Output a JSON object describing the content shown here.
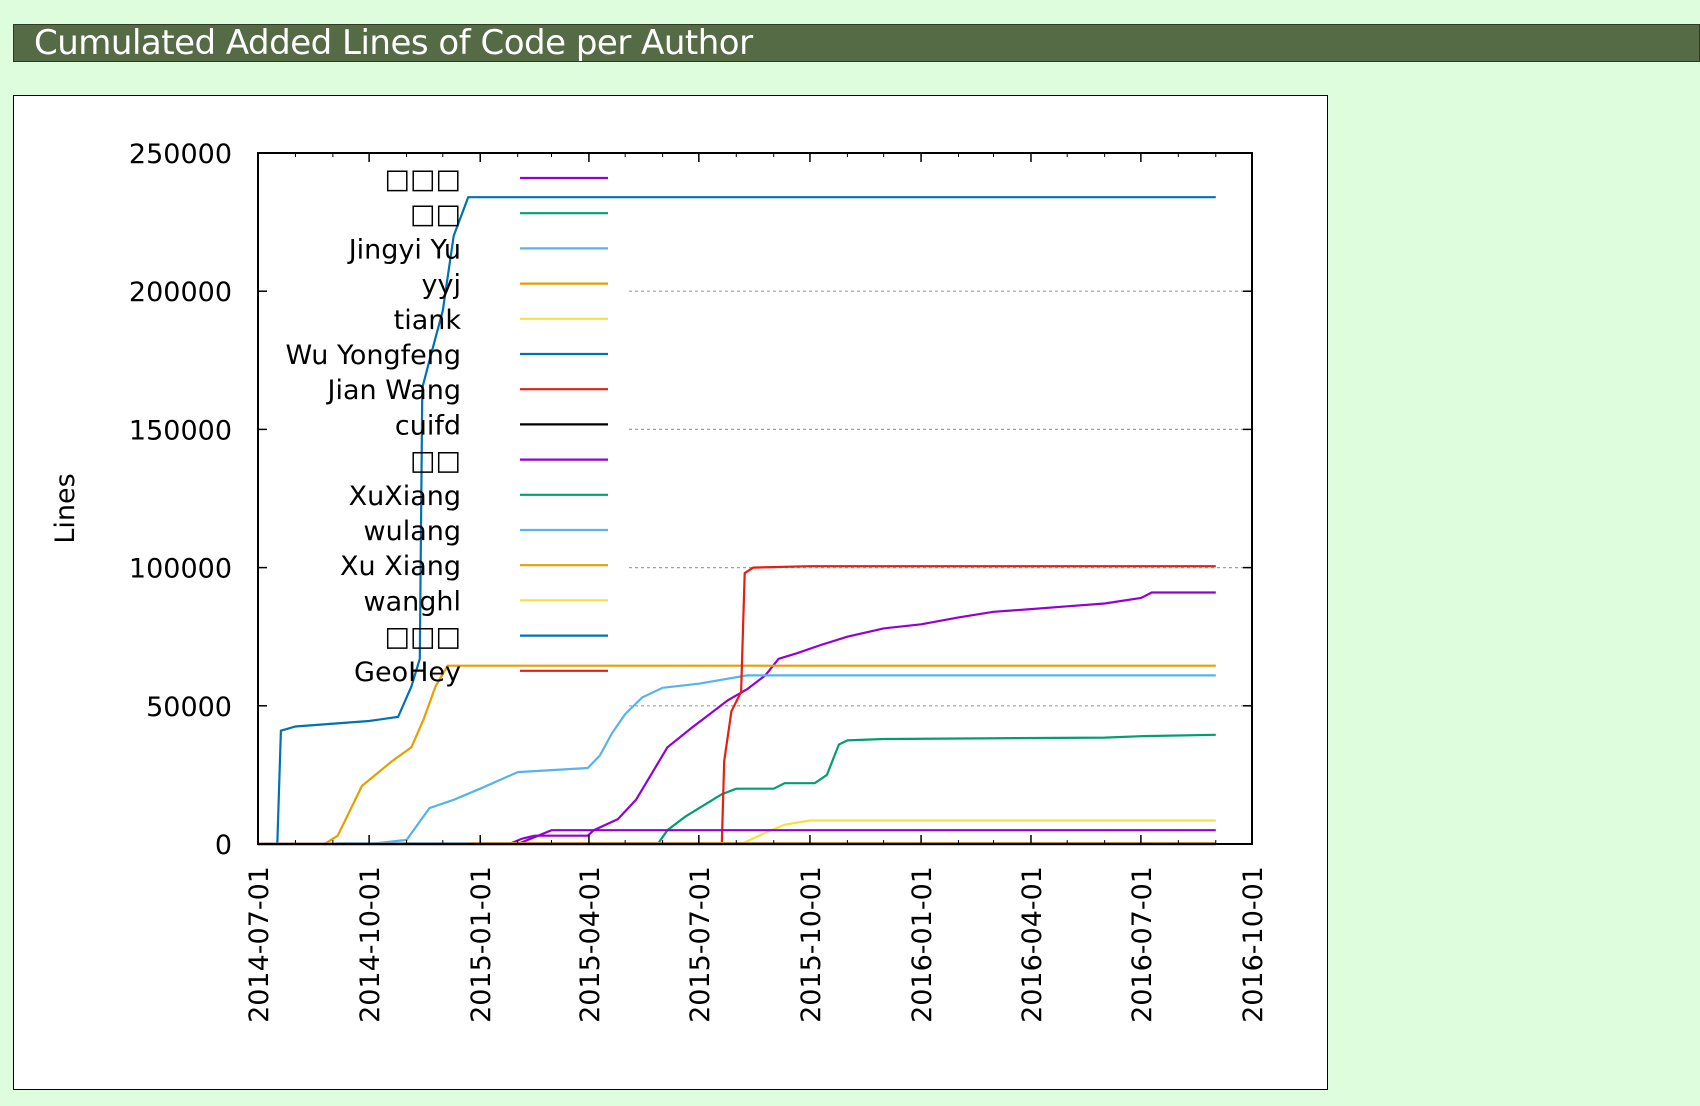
{
  "header": {
    "title": "Cumulated Added Lines of Code per Author"
  },
  "chart_data": {
    "type": "line",
    "title": "",
    "xlabel": "",
    "ylabel": "Lines",
    "xlim": [
      "2014-07-01",
      "2016-10-01"
    ],
    "ylim": [
      0,
      250000
    ],
    "y_ticks": [
      0,
      50000,
      100000,
      150000,
      200000,
      250000
    ],
    "y_tick_labels": [
      "0",
      "50000",
      "100000",
      "150000",
      "200000",
      "250000"
    ],
    "x_ticks": [
      "2014-07-01",
      "2014-10-01",
      "2015-01-01",
      "2015-04-01",
      "2015-07-01",
      "2015-10-01",
      "2016-01-01",
      "2016-04-01",
      "2016-07-01",
      "2016-10-01"
    ],
    "grid": "dotted horizontal lines at y ticks, right of legend",
    "legend": "inside top-left",
    "series": [
      {
        "name": "□□□",
        "color": "#9400d3",
        "points": [
          [
            "2014-07-01",
            0
          ],
          [
            "2015-01-25",
            0
          ],
          [
            "2015-02-05",
            2000
          ],
          [
            "2015-02-15",
            3000
          ],
          [
            "2015-03-31",
            3000
          ],
          [
            "2015-04-05",
            5000
          ],
          [
            "2015-04-25",
            9000
          ],
          [
            "2015-05-10",
            16000
          ],
          [
            "2015-05-25",
            27000
          ],
          [
            "2015-06-05",
            35000
          ],
          [
            "2015-06-25",
            42000
          ],
          [
            "2015-07-10",
            47000
          ],
          [
            "2015-07-25",
            52000
          ],
          [
            "2015-08-10",
            56000
          ],
          [
            "2015-08-25",
            61000
          ],
          [
            "2015-09-05",
            67000
          ],
          [
            "2015-09-20",
            69000
          ],
          [
            "2015-10-10",
            72000
          ],
          [
            "2015-11-01",
            75000
          ],
          [
            "2015-12-01",
            78000
          ],
          [
            "2016-01-01",
            79500
          ],
          [
            "2016-02-01",
            82000
          ],
          [
            "2016-03-01",
            84000
          ],
          [
            "2016-04-01",
            85000
          ],
          [
            "2016-05-01",
            86000
          ],
          [
            "2016-06-01",
            87000
          ],
          [
            "2016-07-01",
            89000
          ],
          [
            "2016-07-10",
            91000
          ],
          [
            "2016-09-01",
            91000
          ]
        ]
      },
      {
        "name": "□□",
        "color": "#009e73",
        "points": [
          [
            "2014-07-01",
            0
          ],
          [
            "2015-05-28",
            0
          ],
          [
            "2015-06-05",
            5000
          ],
          [
            "2015-06-20",
            10000
          ],
          [
            "2015-07-05",
            14000
          ],
          [
            "2015-07-20",
            18000
          ],
          [
            "2015-08-01",
            20000
          ],
          [
            "2015-09-01",
            20000
          ],
          [
            "2015-09-10",
            22000
          ],
          [
            "2015-10-05",
            22000
          ],
          [
            "2015-10-15",
            25000
          ],
          [
            "2015-10-25",
            36000
          ],
          [
            "2015-11-01",
            37500
          ],
          [
            "2015-12-01",
            38000
          ],
          [
            "2016-06-01",
            38500
          ],
          [
            "2016-07-01",
            39000
          ],
          [
            "2016-09-01",
            39500
          ]
        ]
      },
      {
        "name": "Jingyi Yu",
        "color": "#56b4e9",
        "points": [
          [
            "2014-07-01",
            0
          ],
          [
            "2014-10-01",
            0
          ],
          [
            "2014-11-01",
            1500
          ],
          [
            "2014-11-20",
            13000
          ],
          [
            "2014-12-10",
            16000
          ],
          [
            "2015-01-01",
            20000
          ],
          [
            "2015-02-01",
            26000
          ],
          [
            "2015-03-31",
            27500
          ],
          [
            "2015-04-10",
            32000
          ],
          [
            "2015-04-20",
            40000
          ],
          [
            "2015-05-01",
            47000
          ],
          [
            "2015-05-15",
            53000
          ],
          [
            "2015-06-01",
            56500
          ],
          [
            "2015-07-01",
            58000
          ],
          [
            "2015-08-10",
            61000
          ],
          [
            "2016-09-01",
            61000
          ]
        ]
      },
      {
        "name": "yyj",
        "color": "#e69f00",
        "points": [
          [
            "2014-07-01",
            0
          ],
          [
            "2014-08-25",
            0
          ],
          [
            "2014-09-05",
            3000
          ],
          [
            "2014-09-25",
            21000
          ],
          [
            "2014-10-20",
            30000
          ],
          [
            "2014-11-05",
            35000
          ],
          [
            "2014-11-15",
            45000
          ],
          [
            "2014-11-25",
            57000
          ],
          [
            "2014-12-05",
            64500
          ],
          [
            "2016-09-01",
            64500
          ]
        ]
      },
      {
        "name": "tiank",
        "color": "#f0e442",
        "points": [
          [
            "2014-07-01",
            0
          ],
          [
            "2015-08-05",
            0
          ],
          [
            "2015-08-25",
            4000
          ],
          [
            "2015-09-10",
            7000
          ],
          [
            "2015-10-01",
            8500
          ],
          [
            "2016-09-01",
            8500
          ]
        ]
      },
      {
        "name": "Wu Yongfeng",
        "color": "#0072b2",
        "points": [
          [
            "2014-07-01",
            0
          ],
          [
            "2014-07-17",
            0
          ],
          [
            "2014-07-20",
            41000
          ],
          [
            "2014-08-01",
            42500
          ],
          [
            "2014-10-01",
            44500
          ],
          [
            "2014-10-25",
            46000
          ],
          [
            "2014-11-05",
            57000
          ],
          [
            "2014-11-12",
            67000
          ],
          [
            "2014-11-14",
            165000
          ],
          [
            "2014-11-20",
            175000
          ],
          [
            "2014-12-01",
            193000
          ],
          [
            "2014-12-10",
            220000
          ],
          [
            "2014-12-22",
            234000
          ],
          [
            "2016-09-01",
            234000
          ]
        ]
      },
      {
        "name": "Jian Wang",
        "color": "#e51e10",
        "points": [
          [
            "2014-07-01",
            0
          ],
          [
            "2015-07-20",
            0
          ],
          [
            "2015-07-22",
            30000
          ],
          [
            "2015-07-28",
            48000
          ],
          [
            "2015-08-05",
            55000
          ],
          [
            "2015-08-08",
            98000
          ],
          [
            "2015-08-15",
            100000
          ],
          [
            "2015-10-01",
            100500
          ],
          [
            "2016-09-01",
            100500
          ]
        ]
      },
      {
        "name": "cuifd",
        "color": "#000000",
        "points": [
          [
            "2014-07-01",
            0
          ],
          [
            "2016-09-01",
            0
          ]
        ]
      },
      {
        "name": "□□",
        "color": "#9400d3",
        "points": [
          [
            "2014-07-01",
            0
          ],
          [
            "2015-02-01",
            0
          ],
          [
            "2015-03-01",
            5000
          ],
          [
            "2016-09-01",
            5000
          ]
        ]
      },
      {
        "name": "XuXiang",
        "color": "#009e73",
        "points": [
          [
            "2014-07-01",
            0
          ],
          [
            "2015-01-01",
            0
          ],
          [
            "2015-01-05",
            300
          ],
          [
            "2016-09-01",
            300
          ]
        ]
      },
      {
        "name": "wulang",
        "color": "#56b4e9",
        "points": [
          [
            "2014-07-01",
            0
          ],
          [
            "2014-09-01",
            0
          ],
          [
            "2014-09-05",
            300
          ],
          [
            "2016-09-01",
            300
          ]
        ]
      },
      {
        "name": "Xu Xiang",
        "color": "#e69f00",
        "points": [
          [
            "2014-07-01",
            0
          ],
          [
            "2014-12-20",
            0
          ],
          [
            "2014-12-25",
            300
          ],
          [
            "2016-09-01",
            300
          ]
        ]
      },
      {
        "name": "wanghl",
        "color": "#f0e442",
        "points": [
          [
            "2014-07-01",
            0
          ],
          [
            "2016-09-01",
            0
          ]
        ]
      },
      {
        "name": "□□□",
        "color": "#0072b2",
        "points": [
          [
            "2014-07-01",
            0
          ],
          [
            "2016-09-01",
            0
          ]
        ]
      },
      {
        "name": "GeoHey",
        "color": "#e51e10",
        "points": [
          [
            "2014-07-01",
            0
          ],
          [
            "2016-09-01",
            0
          ]
        ]
      }
    ]
  }
}
